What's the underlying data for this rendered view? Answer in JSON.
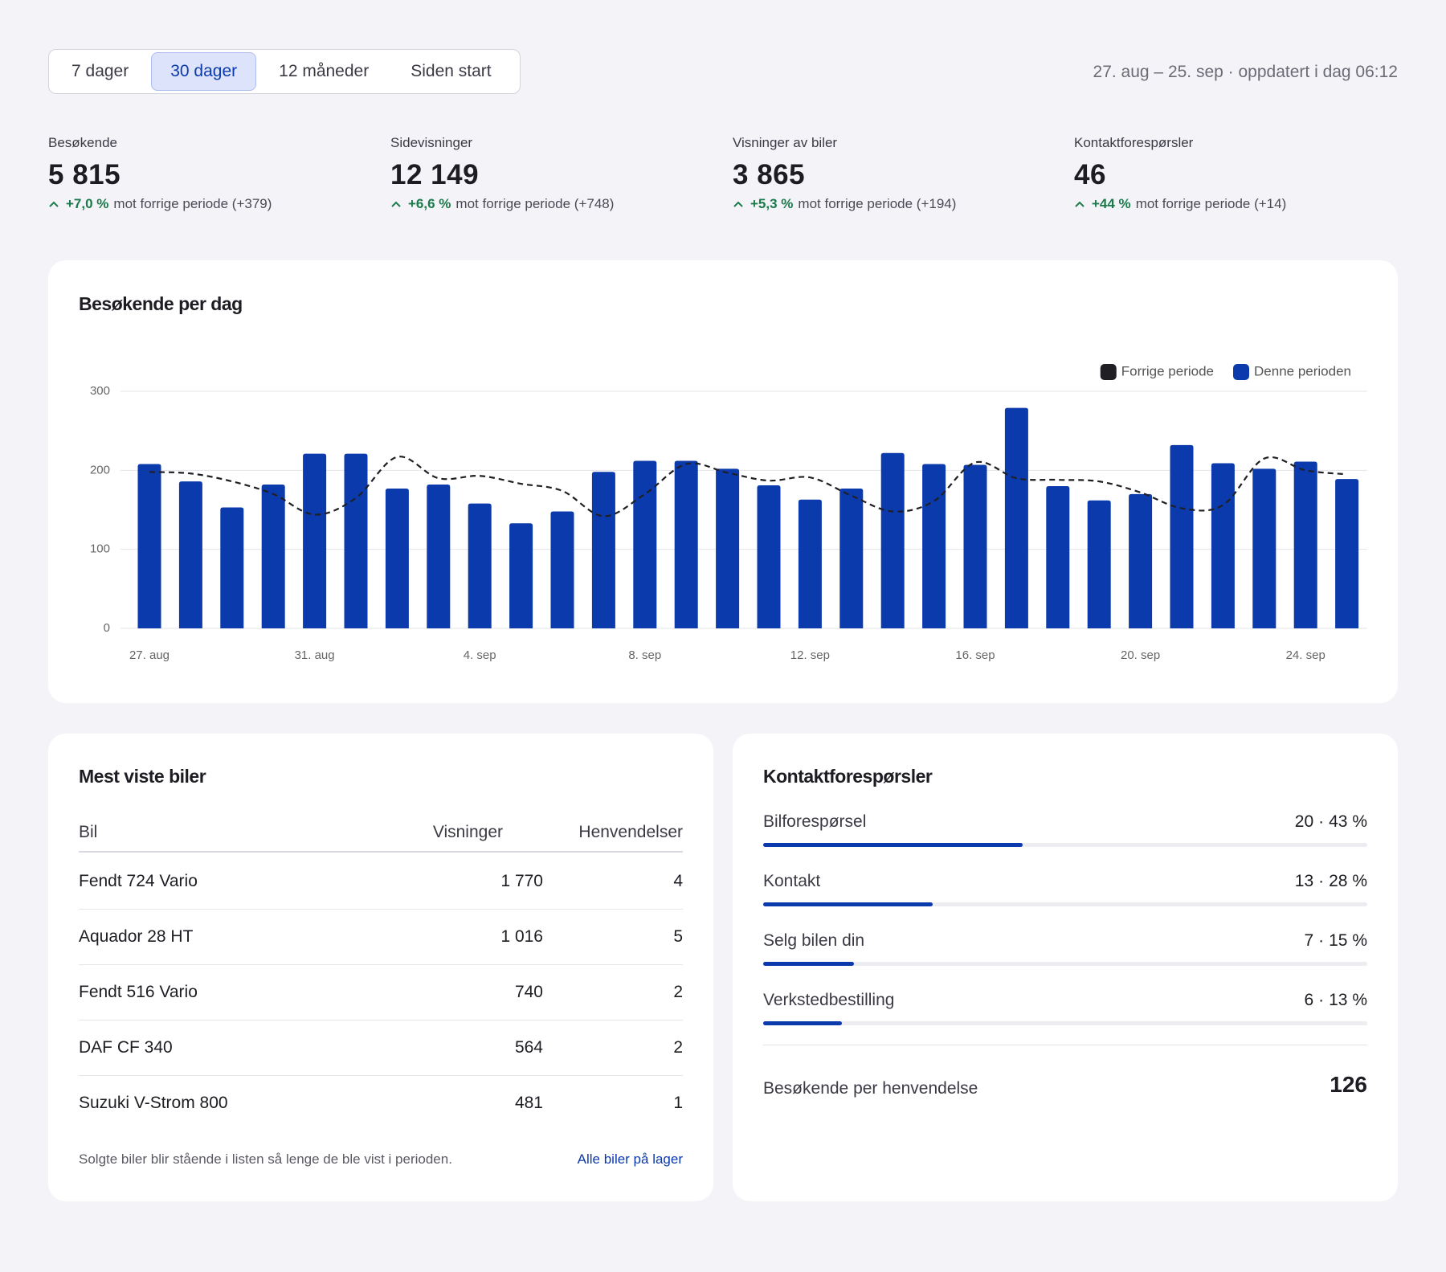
{
  "periods": [
    "7 dager",
    "30 dager",
    "12 måneder",
    "Siden start"
  ],
  "selected_period": "30 dager",
  "range": "27. aug – 25. sep · oppdatert i dag 06:12",
  "kpis": [
    {
      "label": "Besøkende",
      "value": "5 815",
      "change": "+7,0 %",
      "note": "mot forrige periode (+379)"
    },
    {
      "label": "Sidevisninger",
      "value": "12 149",
      "change": "+6,6 %",
      "note": "mot forrige periode (+748)"
    },
    {
      "label": "Visninger av biler",
      "value": "3 865",
      "change": "+5,3 %",
      "note": "mot forrige periode (+194)"
    },
    {
      "label": "Kontaktforespørsler",
      "value": "46",
      "change": "+44 %",
      "note": "mot forrige periode (+14)"
    }
  ],
  "chart_data": {
    "type": "bar",
    "title": "Besøkende per dag",
    "categories": [
      "27. aug",
      null,
      null,
      null,
      "31. aug",
      null,
      null,
      null,
      "4. sep",
      null,
      null,
      null,
      "8. sep",
      null,
      null,
      null,
      "12. sep",
      null,
      null,
      null,
      "16. sep",
      null,
      null,
      null,
      "20. sep",
      null,
      null,
      null,
      "24. sep",
      null
    ],
    "series": [
      {
        "name": "Forrige periode",
        "type": "line",
        "color": "#1f1f24",
        "values": [
          198,
          196,
          186,
          170,
          144,
          165,
          217,
          190,
          193,
          183,
          174,
          142,
          170,
          208,
          197,
          187,
          191,
          168,
          148,
          161,
          210,
          190,
          188,
          186,
          172,
          152,
          156,
          215,
          200,
          195
        ]
      },
      {
        "name": "Denne perioden",
        "type": "bar",
        "color": "#0b3aac",
        "values": [
          208,
          186,
          153,
          182,
          221,
          221,
          177,
          182,
          158,
          133,
          148,
          198,
          212,
          212,
          202,
          181,
          163,
          177,
          222,
          208,
          207,
          279,
          180,
          162,
          170,
          232,
          209,
          202,
          211,
          189
        ]
      }
    ],
    "ylim": [
      0,
      300
    ],
    "yticks": [
      0,
      100,
      200,
      300
    ],
    "grid": true,
    "legend": "top-right"
  },
  "top_cars": {
    "title": "Mest viste biler",
    "columns": [
      "Bil",
      "Visninger",
      "Henvendelser"
    ],
    "rows": [
      [
        "Fendt 724 Vario",
        "1 770",
        "4"
      ],
      [
        "Aquador 28 HT",
        "1 016",
        "5"
      ],
      [
        "Fendt 516 Vario",
        "740",
        "2"
      ],
      [
        "DAF CF 340",
        "564",
        "2"
      ],
      [
        "Suzuki V-Strom 800",
        "481",
        "1"
      ]
    ],
    "note": "Solgte biler blir stående i listen så lenge de ble vist i perioden.",
    "link": "Alle biler på lager"
  },
  "inquiries": {
    "title": "Kontaktforespørsler",
    "items": [
      {
        "label": "Bilforespørsel",
        "count": 20,
        "share": {
          "value": 43,
          "label": "43 %"
        }
      },
      {
        "label": "Kontakt",
        "count": 13,
        "share": {
          "value": 28,
          "label": "28 %"
        }
      },
      {
        "label": "Selg bilen din",
        "count": 7,
        "share": {
          "value": 15,
          "label": "15 %"
        }
      },
      {
        "label": "Verkstedbestilling",
        "count": 6,
        "share": {
          "value": 13,
          "label": "13 %"
        }
      }
    ],
    "summary_label": "Besøkende per henvendelse",
    "summary_value": 126
  }
}
